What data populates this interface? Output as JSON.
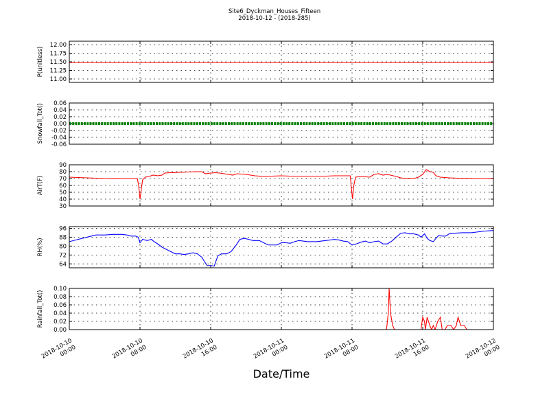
{
  "chart_data": {
    "type": "line",
    "title_line1": "Site6_Dyckman_Houses_Fifteen",
    "title_line2": "2018-10-12 - (2018-285)",
    "xlabel": "Date/Time",
    "x_range_hours": [
      0,
      48
    ],
    "x_ticks": [
      {
        "hour": 0,
        "line1": "2018-10-10",
        "line2": "00:00"
      },
      {
        "hour": 8,
        "line1": "2018-10-10",
        "line2": "08:00"
      },
      {
        "hour": 16,
        "line1": "2018-10-10",
        "line2": "16:00"
      },
      {
        "hour": 24,
        "line1": "2018-10-11",
        "line2": "00:00"
      },
      {
        "hour": 32,
        "line1": "2018-10-11",
        "line2": "08:00"
      },
      {
        "hour": 40,
        "line1": "2018-10-11",
        "line2": "16:00"
      },
      {
        "hour": 48,
        "line1": "2018-10-12",
        "line2": "00:00"
      }
    ],
    "grid": true,
    "panels": [
      {
        "ylabel": "P(unitless)",
        "ylim": [
          10.9,
          12.1
        ],
        "yticks": [
          11.0,
          11.25,
          11.5,
          11.75,
          12.0
        ],
        "ytick_labels": [
          "11.00",
          "11.25",
          "11.50",
          "11.75",
          "12.00"
        ],
        "color": "#ff0000",
        "marker": false,
        "points": [
          [
            0,
            11.48
          ],
          [
            48,
            11.48
          ]
        ]
      },
      {
        "ylabel": "Snowfall_Tot()",
        "ylim": [
          -0.06,
          0.06
        ],
        "yticks": [
          -0.06,
          -0.04,
          -0.02,
          0.0,
          0.02,
          0.04,
          0.06
        ],
        "ytick_labels": [
          "-0.06",
          "-0.04",
          "-0.02",
          "0.00",
          "0.02",
          "0.04",
          "0.06"
        ],
        "color": "#008000",
        "marker": true,
        "points": [
          [
            0,
            0
          ],
          [
            48,
            0
          ]
        ]
      },
      {
        "ylabel": "AirT(F)",
        "ylim": [
          30,
          90
        ],
        "yticks": [
          30,
          40,
          50,
          60,
          70,
          80,
          90
        ],
        "ytick_labels": [
          "30",
          "40",
          "50",
          "60",
          "70",
          "80",
          "90"
        ],
        "color": "#ff0000",
        "marker": false,
        "points": [
          [
            0,
            72
          ],
          [
            1,
            71.5
          ],
          [
            2,
            71
          ],
          [
            3,
            70.5
          ],
          [
            4,
            70
          ],
          [
            5,
            69.8
          ],
          [
            6,
            70
          ],
          [
            7,
            70
          ],
          [
            7.7,
            70
          ],
          [
            7.85,
            60
          ],
          [
            8.0,
            40
          ],
          [
            8.15,
            55
          ],
          [
            8.3,
            68
          ],
          [
            8.6,
            72
          ],
          [
            9,
            73
          ],
          [
            9.5,
            75
          ],
          [
            10,
            74
          ],
          [
            10.5,
            75
          ],
          [
            10.8,
            78
          ],
          [
            11.5,
            78.5
          ],
          [
            12.5,
            79
          ],
          [
            13.5,
            79.5
          ],
          [
            14.5,
            80
          ],
          [
            15,
            80
          ],
          [
            15.4,
            77
          ],
          [
            16,
            78
          ],
          [
            16.5,
            78.5
          ],
          [
            17,
            78
          ],
          [
            17.5,
            77
          ],
          [
            18,
            76
          ],
          [
            18.5,
            75
          ],
          [
            19,
            77
          ],
          [
            20,
            76
          ],
          [
            21,
            74
          ],
          [
            22,
            73
          ],
          [
            23,
            73.5
          ],
          [
            24,
            74
          ],
          [
            25,
            73.5
          ],
          [
            26,
            73.5
          ],
          [
            27,
            73.5
          ],
          [
            28,
            73.5
          ],
          [
            29,
            73.5
          ],
          [
            30,
            74
          ],
          [
            31,
            74
          ],
          [
            31.8,
            74
          ],
          [
            31.9,
            60
          ],
          [
            32.05,
            40
          ],
          [
            32.2,
            60
          ],
          [
            32.4,
            72
          ],
          [
            33,
            73
          ],
          [
            34,
            72
          ],
          [
            34.5,
            76
          ],
          [
            35,
            77
          ],
          [
            35.5,
            75
          ],
          [
            36,
            76
          ],
          [
            37,
            73
          ],
          [
            37.5,
            71
          ],
          [
            38,
            70
          ],
          [
            38.5,
            70.5
          ],
          [
            39,
            70
          ],
          [
            39.5,
            72
          ],
          [
            40,
            76
          ],
          [
            40.4,
            83
          ],
          [
            40.8,
            80
          ],
          [
            41.2,
            79
          ],
          [
            41.5,
            74
          ],
          [
            42,
            72
          ],
          [
            43,
            71
          ],
          [
            44,
            70.5
          ],
          [
            45,
            70.5
          ],
          [
            46,
            70
          ],
          [
            47,
            70
          ],
          [
            48,
            69.5
          ]
        ]
      },
      {
        "ylabel": "RH(%)",
        "ylim": [
          60.5,
          97.5
        ],
        "yticks": [
          64,
          72,
          80,
          88,
          96
        ],
        "ytick_labels": [
          "64",
          "72",
          "80",
          "88",
          "96"
        ],
        "color": "#0000ff",
        "marker": false,
        "points": [
          [
            0,
            84
          ],
          [
            1,
            86
          ],
          [
            2,
            88
          ],
          [
            2.5,
            89
          ],
          [
            3,
            90
          ],
          [
            4,
            90
          ],
          [
            5,
            90.5
          ],
          [
            6,
            90.5
          ],
          [
            6.5,
            90
          ],
          [
            7,
            89
          ],
          [
            7.5,
            89
          ],
          [
            7.8,
            88
          ],
          [
            8.0,
            83
          ],
          [
            8.3,
            86
          ],
          [
            8.8,
            85
          ],
          [
            9.3,
            86
          ],
          [
            9.6,
            84
          ],
          [
            10,
            82
          ],
          [
            10.5,
            79
          ],
          [
            11,
            77
          ],
          [
            11.5,
            75
          ],
          [
            12,
            73
          ],
          [
            12.5,
            73
          ],
          [
            13,
            72.5
          ],
          [
            13.5,
            73
          ],
          [
            14,
            74
          ],
          [
            14.5,
            73
          ],
          [
            15,
            70
          ],
          [
            15.3,
            66
          ],
          [
            15.6,
            62.5
          ],
          [
            16,
            62.5
          ],
          [
            16.4,
            62
          ],
          [
            16.8,
            71
          ],
          [
            17.2,
            73
          ],
          [
            17.8,
            73
          ],
          [
            18.3,
            75
          ],
          [
            18.8,
            80
          ],
          [
            19.3,
            86
          ],
          [
            19.8,
            87
          ],
          [
            20.3,
            86
          ],
          [
            20.8,
            85
          ],
          [
            21.5,
            85
          ],
          [
            22,
            83
          ],
          [
            22.5,
            81
          ],
          [
            23.5,
            81
          ],
          [
            24,
            83
          ],
          [
            24.5,
            83
          ],
          [
            25,
            82.5
          ],
          [
            25.5,
            84
          ],
          [
            26,
            85
          ],
          [
            27,
            84
          ],
          [
            28,
            84
          ],
          [
            29,
            85
          ],
          [
            30,
            86
          ],
          [
            30.5,
            85.5
          ],
          [
            31,
            84.5
          ],
          [
            31.5,
            84
          ],
          [
            32,
            81
          ],
          [
            32.5,
            82
          ],
          [
            33,
            83.5
          ],
          [
            33.5,
            84.5
          ],
          [
            34,
            83
          ],
          [
            34.5,
            84
          ],
          [
            35,
            84.5
          ],
          [
            35.5,
            82
          ],
          [
            36,
            82
          ],
          [
            36.5,
            84.5
          ],
          [
            37,
            88
          ],
          [
            37.5,
            91.5
          ],
          [
            38,
            92
          ],
          [
            38.5,
            91
          ],
          [
            39,
            91
          ],
          [
            39.5,
            90
          ],
          [
            39.8,
            88
          ],
          [
            40.2,
            91
          ],
          [
            40.5,
            87
          ],
          [
            40.8,
            85
          ],
          [
            41.2,
            84
          ],
          [
            41.5,
            87
          ],
          [
            41.8,
            89.5
          ],
          [
            42.2,
            89
          ],
          [
            42.6,
            89
          ],
          [
            43,
            91
          ],
          [
            43.5,
            91.5
          ],
          [
            44.5,
            92
          ],
          [
            45.5,
            92
          ],
          [
            46,
            92.5
          ],
          [
            46.5,
            93
          ],
          [
            47,
            93.5
          ],
          [
            48,
            94
          ]
        ]
      },
      {
        "ylabel": "Rainfall_Tot()",
        "ylim": [
          0,
          0.1
        ],
        "yticks": [
          0.0,
          0.02,
          0.04,
          0.06,
          0.08,
          0.1
        ],
        "ytick_labels": [
          "0.00",
          "0.02",
          "0.04",
          "0.06",
          "0.08",
          "0.10"
        ],
        "color": "#ff0000",
        "marker": false,
        "points": [
          [
            0,
            0
          ],
          [
            35.9,
            0
          ],
          [
            36.1,
            0.04
          ],
          [
            36.2,
            0.1
          ],
          [
            36.35,
            0.04
          ],
          [
            36.6,
            0.01
          ],
          [
            36.8,
            0
          ],
          [
            39.8,
            0
          ],
          [
            40.0,
            0.03
          ],
          [
            40.2,
            0.02
          ],
          [
            40.3,
            0
          ],
          [
            40.5,
            0.03
          ],
          [
            40.8,
            0.01
          ],
          [
            41,
            0.0
          ],
          [
            41.2,
            0.01
          ],
          [
            41.4,
            0
          ],
          [
            41.7,
            0.02
          ],
          [
            42,
            0.03
          ],
          [
            42.2,
            0
          ],
          [
            42.5,
            0
          ],
          [
            42.8,
            0.01
          ],
          [
            43.2,
            0.01
          ],
          [
            43.5,
            0
          ],
          [
            43.8,
            0.01
          ],
          [
            44,
            0.03
          ],
          [
            44.3,
            0.01
          ],
          [
            44.7,
            0.01
          ],
          [
            45,
            0
          ],
          [
            48,
            0
          ]
        ]
      }
    ]
  }
}
